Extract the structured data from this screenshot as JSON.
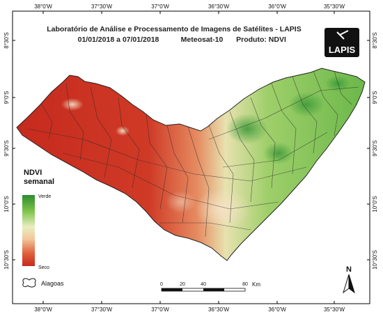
{
  "header": {
    "title": "Laboratório de Análise e Processamento de Imagens de Satélites - LAPIS",
    "period": "01/01/2018  a 07/01/2018",
    "satellite": "Meteosat-10",
    "product": "Produto: NDVI"
  },
  "logo": {
    "text": "LAPIS"
  },
  "axes": {
    "top_labels": [
      "38°0'W",
      "37°30'W",
      "37°0'W",
      "36°30'W",
      "36°0'W",
      "35°30'W"
    ],
    "bottom_labels": [
      "38°0'W",
      "37°30'W",
      "37°0'W",
      "36°30'W",
      "36°0'W",
      "35°30'W"
    ],
    "left_labels": [
      "8°30'S",
      "9°0'S",
      "9°30'S",
      "10°0'S",
      "10°30'S"
    ],
    "right_labels": [
      "8°30'S",
      "9°0'S",
      "9°30'S",
      "10°0'S",
      "10°30'S"
    ]
  },
  "legend": {
    "title_line1": "NDVI",
    "title_line2": "semanal",
    "high_label": "Verde",
    "low_label": "Seco",
    "colors": [
      "#2e8b2e",
      "#7cc24a",
      "#e9eec0",
      "#f2c79a",
      "#e0603b",
      "#c62a1e"
    ],
    "area_label": "Alagoas"
  },
  "scale": {
    "ticks": [
      "0",
      "20",
      "40",
      "80"
    ],
    "unit": "Km"
  },
  "north": {
    "label": "N"
  }
}
